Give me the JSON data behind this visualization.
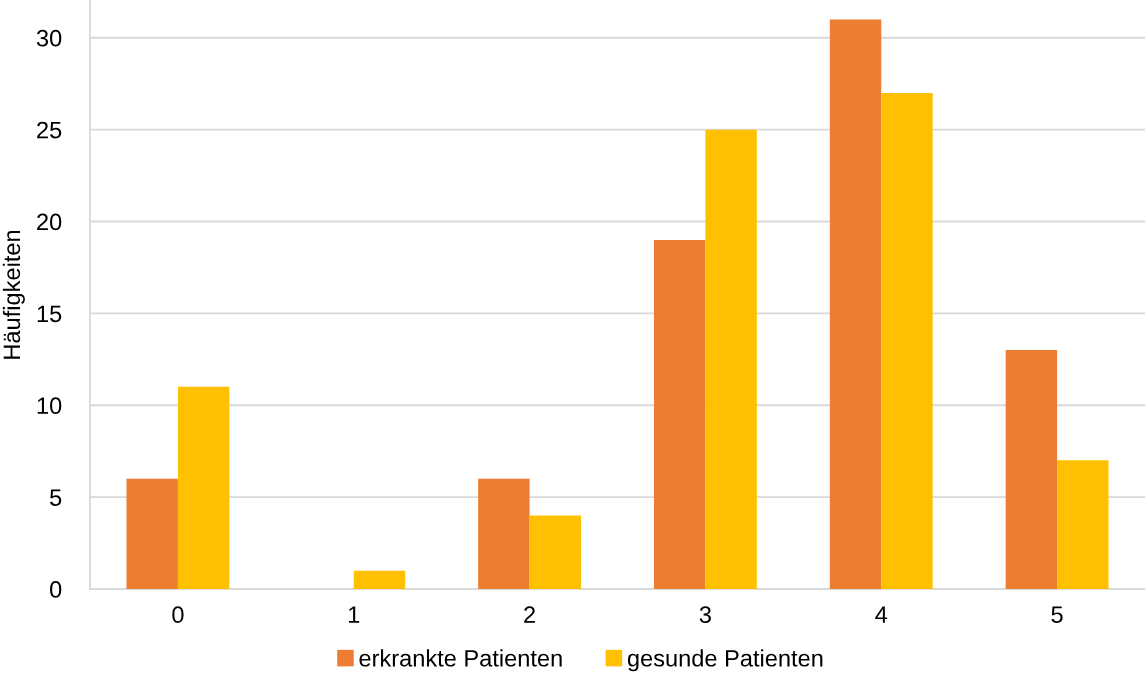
{
  "chart_data": {
    "type": "bar",
    "ylabel": "Häufigkeiten",
    "categories": [
      "0",
      "1",
      "2",
      "3",
      "4",
      "5"
    ],
    "series": [
      {
        "name": "erkrankte Patienten",
        "color": "#ed7d31",
        "values": [
          6,
          0,
          6,
          19,
          31,
          13
        ]
      },
      {
        "name": "gesunde Patienten",
        "color": "#ffc000",
        "values": [
          11,
          1,
          4,
          25,
          27,
          7
        ]
      }
    ],
    "ylim": [
      0,
      32
    ],
    "yticks": [
      0,
      5,
      10,
      15,
      20,
      25,
      30
    ],
    "grid": "y",
    "legend": "bottom"
  }
}
